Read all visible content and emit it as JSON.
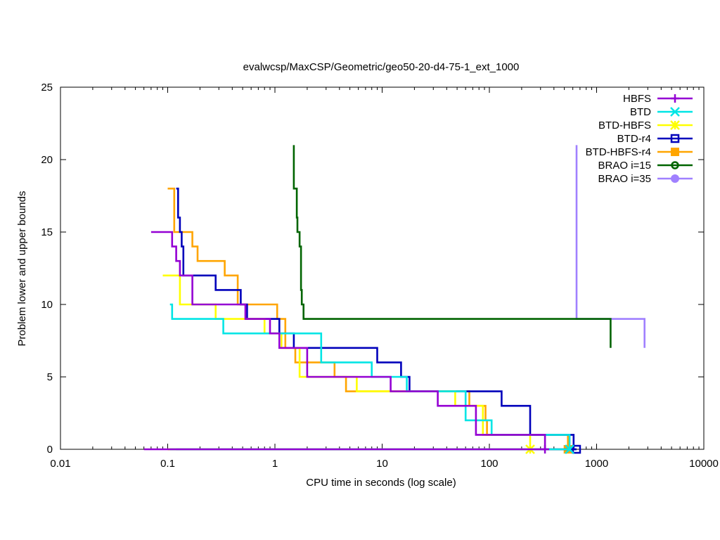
{
  "chart_data": {
    "type": "line",
    "title": "evalwcsp/MaxCSP/Geometric/geo50-20-d4-75-1_ext_1000",
    "xlabel": "CPU time in seconds (log scale)",
    "ylabel": "Problem lower and upper bounds",
    "xscale": "log",
    "xlim": [
      0.01,
      10000
    ],
    "ylim": [
      0,
      25
    ],
    "xticks": [
      {
        "v": 0.01,
        "label": "0.01"
      },
      {
        "v": 0.1,
        "label": "0.1"
      },
      {
        "v": 1,
        "label": "1"
      },
      {
        "v": 10,
        "label": "10"
      },
      {
        "v": 100,
        "label": "100"
      },
      {
        "v": 1000,
        "label": "1000"
      },
      {
        "v": 10000,
        "label": "10000"
      }
    ],
    "yticks": [
      {
        "v": 0,
        "label": "0"
      },
      {
        "v": 5,
        "label": "5"
      },
      {
        "v": 10,
        "label": "10"
      },
      {
        "v": 15,
        "label": "15"
      },
      {
        "v": 20,
        "label": "20"
      },
      {
        "v": 25,
        "label": "25"
      }
    ],
    "grid": false,
    "legend": "top-right",
    "series": [
      {
        "name": "HBFS",
        "color": "#9400d3",
        "marker": "plus",
        "upper": [
          [
            0.07,
            15
          ],
          [
            0.11,
            15
          ],
          [
            0.11,
            14
          ],
          [
            0.12,
            14
          ],
          [
            0.12,
            13
          ],
          [
            0.13,
            13
          ],
          [
            0.13,
            12
          ],
          [
            0.17,
            12
          ],
          [
            0.17,
            10
          ],
          [
            0.53,
            10
          ],
          [
            0.53,
            9
          ],
          [
            0.9,
            9
          ],
          [
            0.9,
            8
          ],
          [
            1.1,
            8
          ],
          [
            1.1,
            7
          ],
          [
            2.0,
            7
          ],
          [
            2.0,
            5
          ],
          [
            12,
            5
          ],
          [
            12,
            4
          ],
          [
            33,
            4
          ],
          [
            33,
            3
          ],
          [
            75,
            3
          ],
          [
            75,
            1
          ],
          [
            330,
            1
          ],
          [
            330,
            0
          ]
        ],
        "lower": [
          [
            0.06,
            0
          ],
          [
            330,
            0
          ]
        ],
        "end_marker": [
          330,
          0
        ]
      },
      {
        "name": "BTD",
        "color": "#00e5e5",
        "marker": "cross",
        "upper": [
          [
            0.105,
            10
          ],
          [
            0.11,
            10
          ],
          [
            0.11,
            9
          ],
          [
            0.33,
            9
          ],
          [
            0.33,
            8
          ],
          [
            2.7,
            8
          ],
          [
            2.7,
            6
          ],
          [
            8,
            6
          ],
          [
            8,
            5
          ],
          [
            17,
            5
          ],
          [
            17,
            4
          ],
          [
            60,
            4
          ],
          [
            60,
            2
          ],
          [
            105,
            2
          ],
          [
            105,
            1
          ],
          [
            560,
            1
          ],
          [
            560,
            0
          ]
        ],
        "lower": [
          [
            0.105,
            0
          ],
          [
            560,
            0
          ]
        ],
        "end_marker": [
          560,
          0
        ]
      },
      {
        "name": "BTD-HBFS",
        "color": "#ffff00",
        "marker": "star",
        "upper": [
          [
            0.09,
            12
          ],
          [
            0.13,
            12
          ],
          [
            0.13,
            10
          ],
          [
            0.28,
            10
          ],
          [
            0.28,
            9
          ],
          [
            0.8,
            9
          ],
          [
            0.8,
            8
          ],
          [
            1.15,
            8
          ],
          [
            1.15,
            7
          ],
          [
            1.7,
            7
          ],
          [
            1.7,
            5
          ],
          [
            5.8,
            5
          ],
          [
            5.8,
            4
          ],
          [
            48,
            4
          ],
          [
            48,
            3
          ],
          [
            87,
            3
          ],
          [
            87,
            1
          ],
          [
            240,
            1
          ],
          [
            240,
            0
          ]
        ],
        "lower": [
          [
            0.1,
            0
          ],
          [
            240,
            0
          ]
        ],
        "end_marker": [
          240,
          0
        ]
      },
      {
        "name": "BTD-r4",
        "color": "#0000bb",
        "marker": "square-open",
        "upper": [
          [
            0.12,
            18
          ],
          [
            0.125,
            18
          ],
          [
            0.125,
            16
          ],
          [
            0.13,
            16
          ],
          [
            0.13,
            15
          ],
          [
            0.135,
            15
          ],
          [
            0.135,
            14
          ],
          [
            0.14,
            14
          ],
          [
            0.14,
            12
          ],
          [
            0.28,
            12
          ],
          [
            0.28,
            11
          ],
          [
            0.48,
            11
          ],
          [
            0.48,
            10
          ],
          [
            0.55,
            10
          ],
          [
            0.55,
            9
          ],
          [
            1.1,
            9
          ],
          [
            1.1,
            8
          ],
          [
            1.5,
            8
          ],
          [
            1.5,
            7
          ],
          [
            9,
            7
          ],
          [
            9,
            6
          ],
          [
            15,
            6
          ],
          [
            15,
            5
          ],
          [
            18,
            5
          ],
          [
            18,
            4
          ],
          [
            130,
            4
          ],
          [
            130,
            3
          ],
          [
            240,
            3
          ],
          [
            240,
            1
          ],
          [
            610,
            1
          ],
          [
            610,
            0
          ],
          [
            650,
            0
          ]
        ],
        "lower": [
          [
            0.12,
            0
          ],
          [
            650,
            0
          ]
        ],
        "end_marker": [
          650,
          0
        ]
      },
      {
        "name": "BTD-HBFS-r4",
        "color": "#ffa500",
        "marker": "square-filled",
        "upper": [
          [
            0.1,
            18
          ],
          [
            0.115,
            18
          ],
          [
            0.115,
            15
          ],
          [
            0.17,
            15
          ],
          [
            0.17,
            14
          ],
          [
            0.19,
            14
          ],
          [
            0.19,
            13
          ],
          [
            0.34,
            13
          ],
          [
            0.34,
            12
          ],
          [
            0.45,
            12
          ],
          [
            0.45,
            10
          ],
          [
            1.05,
            10
          ],
          [
            1.05,
            9
          ],
          [
            1.25,
            9
          ],
          [
            1.25,
            7
          ],
          [
            1.55,
            7
          ],
          [
            1.55,
            6
          ],
          [
            3.6,
            6
          ],
          [
            3.6,
            5
          ],
          [
            4.6,
            5
          ],
          [
            4.6,
            4
          ],
          [
            65,
            4
          ],
          [
            65,
            3
          ],
          [
            92,
            3
          ],
          [
            92,
            2
          ],
          [
            95,
            2
          ],
          [
            95,
            1
          ],
          [
            540,
            1
          ],
          [
            540,
            0
          ]
        ],
        "lower": [
          [
            0.1,
            0
          ],
          [
            540,
            0
          ]
        ],
        "end_marker": [
          540,
          0
        ]
      },
      {
        "name": "BRAO i=15",
        "color": "#006400",
        "marker": "circle-open",
        "upper": [
          [
            1.5,
            21
          ],
          [
            1.5,
            18
          ],
          [
            1.6,
            18
          ],
          [
            1.6,
            16
          ],
          [
            1.62,
            16
          ],
          [
            1.62,
            15
          ],
          [
            1.7,
            15
          ],
          [
            1.7,
            14
          ],
          [
            1.75,
            14
          ],
          [
            1.75,
            11
          ],
          [
            1.78,
            11
          ],
          [
            1.78,
            10
          ],
          [
            1.85,
            10
          ],
          [
            1.85,
            9
          ],
          [
            1350,
            9
          ],
          [
            1350,
            7
          ]
        ],
        "lower": [],
        "end_marker": null
      },
      {
        "name": "BRAO i=35",
        "color": "#a080ff",
        "marker": "circle-filled",
        "upper": [
          [
            650,
            21
          ],
          [
            650,
            9
          ],
          [
            2800,
            9
          ],
          [
            2800,
            7
          ]
        ],
        "lower": [],
        "end_marker": null
      }
    ]
  }
}
